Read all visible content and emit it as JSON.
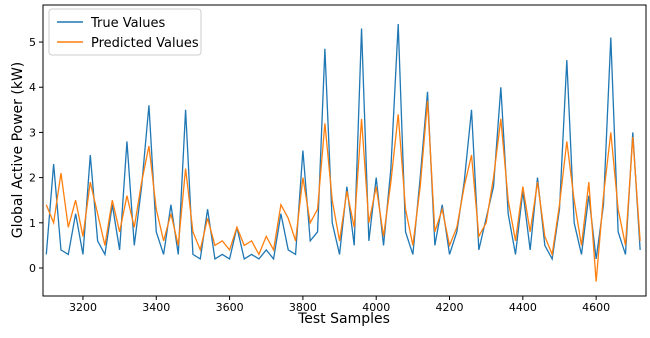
{
  "chart_data": {
    "type": "line",
    "xlabel": "Test Samples",
    "ylabel": "Global Active Power (kW)",
    "x": [
      3100,
      3120,
      3140,
      3160,
      3180,
      3200,
      3220,
      3240,
      3260,
      3280,
      3300,
      3320,
      3340,
      3360,
      3380,
      3400,
      3420,
      3440,
      3460,
      3480,
      3500,
      3520,
      3540,
      3560,
      3580,
      3600,
      3620,
      3640,
      3660,
      3680,
      3700,
      3720,
      3740,
      3760,
      3780,
      3800,
      3820,
      3840,
      3860,
      3880,
      3900,
      3920,
      3940,
      3960,
      3980,
      4000,
      4020,
      4040,
      4060,
      4080,
      4100,
      4120,
      4140,
      4160,
      4180,
      4200,
      4220,
      4240,
      4260,
      4280,
      4300,
      4320,
      4340,
      4360,
      4380,
      4400,
      4420,
      4440,
      4460,
      4480,
      4500,
      4520,
      4540,
      4560,
      4580,
      4600,
      4620,
      4640,
      4660,
      4680,
      4700,
      4720
    ],
    "series": [
      {
        "name": "True Values",
        "color": "#1f77b4",
        "values": [
          0.3,
          2.3,
          0.4,
          0.3,
          1.2,
          0.3,
          2.5,
          0.6,
          0.3,
          1.4,
          0.4,
          2.8,
          0.5,
          1.8,
          3.6,
          0.8,
          0.3,
          1.4,
          0.3,
          3.5,
          0.3,
          0.2,
          1.3,
          0.2,
          0.3,
          0.2,
          0.9,
          0.2,
          0.3,
          0.2,
          0.4,
          0.2,
          1.2,
          0.4,
          0.3,
          2.6,
          0.6,
          0.8,
          4.85,
          1.0,
          0.3,
          1.8,
          0.5,
          5.3,
          0.6,
          2.0,
          0.5,
          2.2,
          5.4,
          0.8,
          0.3,
          2.0,
          3.9,
          0.5,
          1.4,
          0.3,
          0.8,
          1.9,
          3.5,
          0.4,
          1.1,
          1.8,
          4.0,
          1.2,
          0.3,
          1.7,
          0.4,
          2.0,
          0.5,
          0.2,
          1.3,
          4.6,
          1.0,
          0.3,
          1.6,
          0.2,
          1.4,
          5.1,
          0.8,
          0.3,
          3.0,
          0.4
        ]
      },
      {
        "name": "Predicted Values",
        "color": "#ff7f0e",
        "values": [
          1.4,
          1.0,
          2.1,
          0.9,
          1.5,
          0.7,
          1.9,
          1.2,
          0.5,
          1.5,
          0.8,
          1.6,
          0.9,
          1.9,
          2.7,
          1.3,
          0.6,
          1.2,
          0.5,
          2.2,
          0.8,
          0.4,
          1.1,
          0.5,
          0.6,
          0.4,
          0.9,
          0.5,
          0.6,
          0.3,
          0.7,
          0.4,
          1.4,
          1.1,
          0.6,
          2.0,
          1.0,
          1.3,
          3.2,
          1.5,
          0.6,
          1.7,
          0.9,
          3.3,
          1.0,
          1.8,
          0.7,
          1.9,
          3.4,
          1.3,
          0.5,
          1.8,
          3.7,
          0.8,
          1.3,
          0.5,
          0.9,
          1.8,
          2.5,
          0.7,
          1.0,
          2.0,
          3.3,
          1.5,
          0.6,
          1.8,
          0.8,
          1.9,
          0.7,
          0.3,
          1.4,
          2.8,
          1.5,
          0.5,
          1.9,
          -0.3,
          1.6,
          3.0,
          1.3,
          0.5,
          2.9,
          0.6
        ]
      }
    ],
    "xlim": [
      3091,
      4736
    ],
    "ylim": [
      -0.62,
      5.82
    ],
    "xticks": [
      3200,
      3400,
      3600,
      3800,
      4000,
      4200,
      4400,
      4600
    ],
    "yticks": [
      0,
      1,
      2,
      3,
      4,
      5
    ],
    "legend": "upper left"
  }
}
